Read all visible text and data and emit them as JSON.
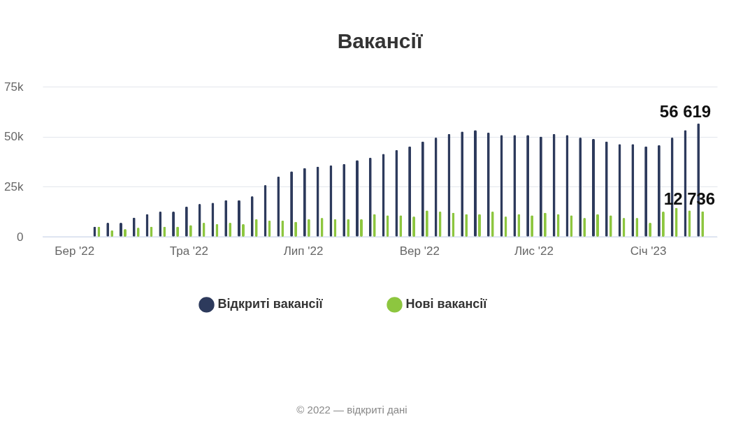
{
  "chart_data": {
    "type": "bar",
    "title": "Вакансії",
    "x": [
      "2022-03-13",
      "2022-03-20",
      "2022-03-27",
      "2022-04-03",
      "2022-04-10",
      "2022-04-17",
      "2022-04-24",
      "2022-05-01",
      "2022-05-08",
      "2022-05-15",
      "2022-05-22",
      "2022-05-29",
      "2022-06-05",
      "2022-06-12",
      "2022-06-19",
      "2022-06-26",
      "2022-07-03",
      "2022-07-10",
      "2022-07-17",
      "2022-07-24",
      "2022-07-31",
      "2022-08-07",
      "2022-08-14",
      "2022-08-21",
      "2022-08-28",
      "2022-09-04",
      "2022-09-11",
      "2022-09-18",
      "2022-09-25",
      "2022-10-02",
      "2022-10-09",
      "2022-10-16",
      "2022-10-23",
      "2022-10-30",
      "2022-11-06",
      "2022-11-13",
      "2022-11-20",
      "2022-11-27",
      "2022-12-04",
      "2022-12-11",
      "2022-12-18",
      "2022-12-25",
      "2023-01-01",
      "2023-01-08",
      "2023-01-15",
      "2023-01-22",
      "2023-01-29"
    ],
    "series": [
      {
        "name": "Відкриті вакансії",
        "color": "#2d3a5c",
        "values": [
          5100,
          7000,
          7000,
          9600,
          11300,
          12600,
          12600,
          15100,
          16400,
          17000,
          18300,
          18300,
          20200,
          25800,
          30100,
          32700,
          34400,
          35100,
          35700,
          36400,
          38300,
          39500,
          41400,
          43300,
          45200,
          47600,
          49500,
          51400,
          52600,
          53300,
          52100,
          50800,
          50800,
          50800,
          50100,
          51400,
          50800,
          49500,
          48900,
          47600,
          46300,
          46300,
          45200,
          45800,
          49500,
          53300,
          56619
        ],
        "value_labels": [
          null,
          null,
          null,
          null,
          null,
          null,
          null,
          null,
          null,
          null,
          null,
          null,
          null,
          null,
          null,
          null,
          null,
          null,
          null,
          null,
          null,
          null,
          null,
          null,
          null,
          null,
          null,
          null,
          null,
          null,
          null,
          null,
          null,
          null,
          null,
          null,
          null,
          null,
          null,
          null,
          null,
          null,
          null,
          null,
          null,
          null,
          "56 619"
        ]
      },
      {
        "name": "Нові вакансії",
        "color": "#8dc63f",
        "values": [
          5100,
          3200,
          3800,
          4500,
          5100,
          5100,
          5100,
          5800,
          7000,
          6400,
          7000,
          6400,
          8800,
          8100,
          8100,
          7500,
          8800,
          9400,
          8800,
          8800,
          8800,
          11300,
          10700,
          10700,
          10100,
          13200,
          12600,
          12000,
          11300,
          11300,
          12600,
          10100,
          11300,
          10700,
          12000,
          11300,
          10700,
          9400,
          11300,
          10700,
          9400,
          9400,
          7000,
          12600,
          14500,
          13200,
          12736
        ],
        "value_labels": [
          null,
          null,
          null,
          null,
          null,
          null,
          null,
          null,
          null,
          null,
          null,
          null,
          null,
          null,
          null,
          null,
          null,
          null,
          null,
          null,
          null,
          null,
          null,
          null,
          null,
          null,
          null,
          null,
          null,
          null,
          null,
          null,
          null,
          null,
          null,
          null,
          null,
          null,
          null,
          null,
          null,
          null,
          null,
          null,
          null,
          null,
          "12 736"
        ]
      }
    ],
    "xlim": [
      "2022-02-14",
      "2023-02-05"
    ],
    "xticks": [
      {
        "value": "2022-03-01",
        "label": "Бер '22"
      },
      {
        "value": "2022-05-01",
        "label": "Тра '22"
      },
      {
        "value": "2022-07-01",
        "label": "Лип '22"
      },
      {
        "value": "2022-09-01",
        "label": "Вер '22"
      },
      {
        "value": "2022-11-01",
        "label": "Лис '22"
      },
      {
        "value": "2023-01-01",
        "label": "Січ '23"
      }
    ],
    "ylim": [
      0,
      75000
    ],
    "yticks": [
      0,
      {
        "value": 25000,
        "label": "25k"
      },
      {
        "value": 50000,
        "label": "50k"
      },
      {
        "value": 75000,
        "label": "75k"
      }
    ],
    "grid": "y",
    "legend": "bottom",
    "annotations": [
      "© 2022 — відкриті дані"
    ]
  }
}
